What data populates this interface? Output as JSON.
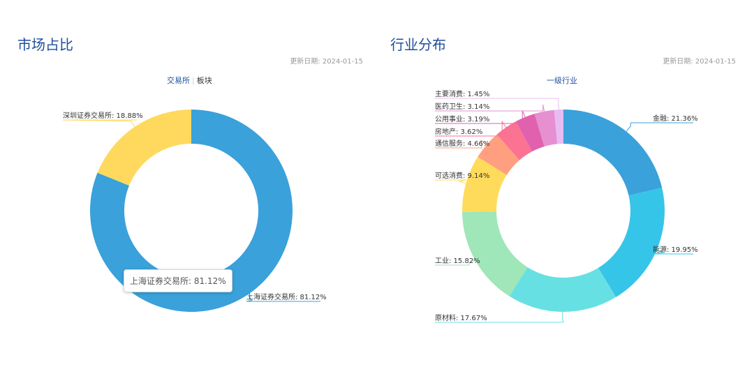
{
  "market_share": {
    "title": "市场占比",
    "date_label": "更新日期:",
    "date_value": "2024-01-15",
    "tabs": [
      {
        "label": "交易所",
        "active": true
      },
      {
        "label": "板块",
        "active": false
      }
    ],
    "tooltip": "上海证券交易所: 81.12%"
  },
  "industry": {
    "title": "行业分布",
    "date_label": "更新日期:",
    "date_value": "2024-01-15",
    "subtitle": "一级行业"
  },
  "chart_data": [
    {
      "type": "pie",
      "donut": true,
      "slices": [
        {
          "label": "上海证券交易所",
          "value": 81.12,
          "display": "上海证券交易所: 81.12%",
          "color": "#3aa1da"
        },
        {
          "label": "深圳证券交易所",
          "value": 18.88,
          "display": "深圳证券交易所: 18.88%",
          "color": "#ffd95e"
        }
      ]
    },
    {
      "type": "pie",
      "donut": true,
      "slices": [
        {
          "label": "金融",
          "value": 21.36,
          "display": "金融: 21.36%",
          "color": "#3aa1da"
        },
        {
          "label": "能源",
          "value": 19.95,
          "display": "能源: 19.95%",
          "color": "#35c5e8"
        },
        {
          "label": "原材料",
          "value": 17.67,
          "display": "原材料: 17.67%",
          "color": "#67e0e3"
        },
        {
          "label": "工业",
          "value": 15.82,
          "display": "工业: 15.82%",
          "color": "#9fe6b8"
        },
        {
          "label": "可选消费",
          "value": 9.14,
          "display": "可选消费: 9.14%",
          "color": "#ffdb5c"
        },
        {
          "label": "通信服务",
          "value": 4.66,
          "display": "通信服务: 4.66%",
          "color": "#ff9f7f"
        },
        {
          "label": "房地产",
          "value": 3.62,
          "display": "房地产: 3.62%",
          "color": "#fb7293"
        },
        {
          "label": "公用事业",
          "value": 3.19,
          "display": "公用事业: 3.19%",
          "color": "#e062ae"
        },
        {
          "label": "医药卫生",
          "value": 3.14,
          "display": "医药卫生: 3.14%",
          "color": "#e690d1"
        },
        {
          "label": "主要消费",
          "value": 1.45,
          "display": "主要消费: 1.45%",
          "color": "#e7bcf3"
        }
      ]
    }
  ]
}
